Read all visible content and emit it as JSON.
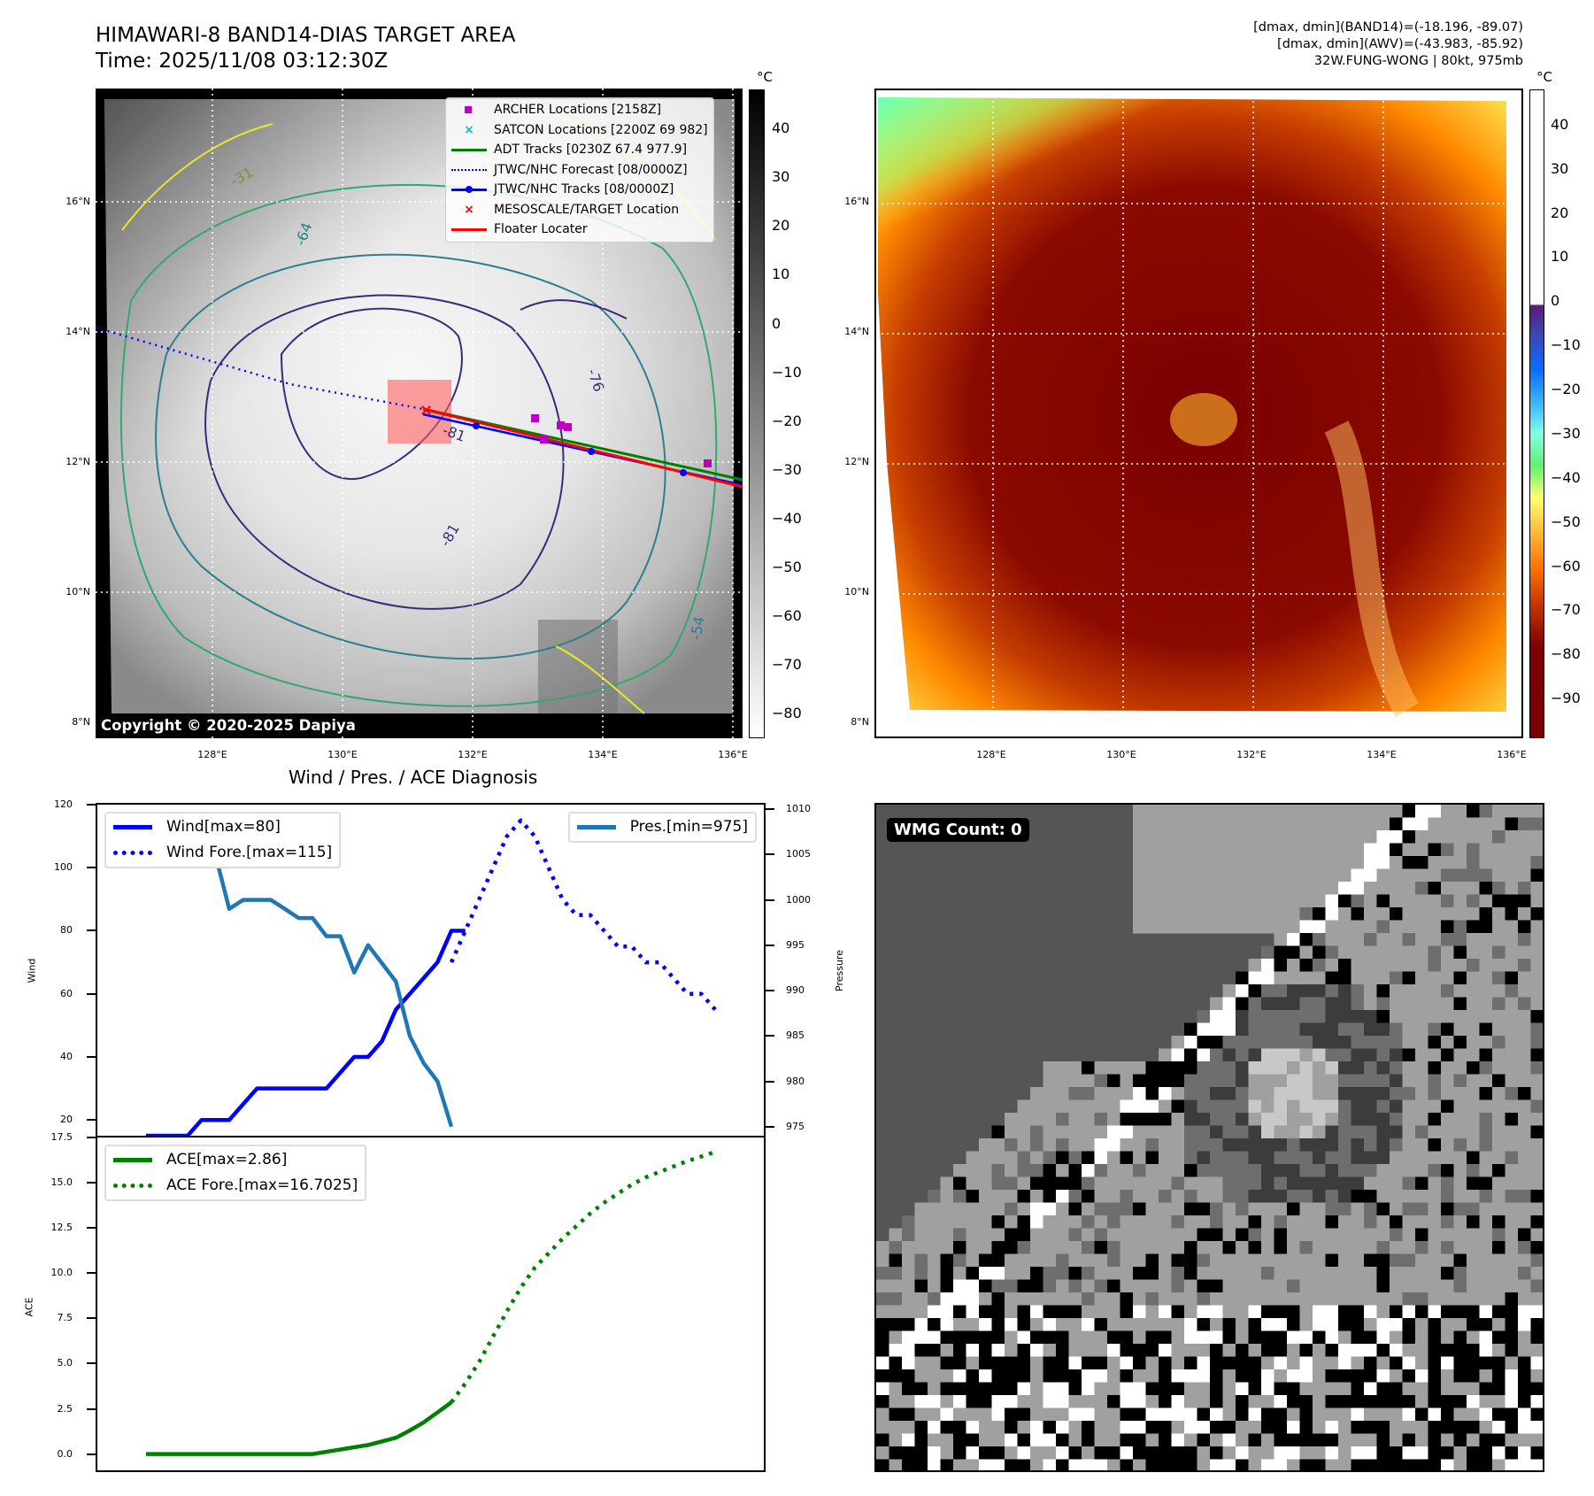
{
  "header": {
    "title_line1": "HIMAWARI-8 BAND14-DIAS TARGET AREA",
    "title_line2": "Time: 2025/11/08 03:12:30Z",
    "stats_line1": "[dmax, dmin](BAND14)=(-18.196, -89.07)",
    "stats_line2": "[dmax, dmin](AWV)=(-43.983, -85.92)",
    "stats_line3": "32W.FUNG-WONG | 80kt, 975mb"
  },
  "map_axes": {
    "lat_ticks": [
      "16°N",
      "14°N",
      "12°N",
      "10°N",
      "8°N"
    ],
    "lon_ticks": [
      "128°E",
      "130°E",
      "132°E",
      "134°E",
      "136°E"
    ]
  },
  "ir_map": {
    "copyright": "Copyright © 2020-2025 Dapiya",
    "legend": [
      {
        "label": "ARCHER Locations [2158Z]",
        "symbol": "square",
        "color": "#c000c0"
      },
      {
        "label": "SATCON Locations [2200Z 69 982]",
        "symbol": "x",
        "color": "#00bfbf"
      },
      {
        "label": "ADT Tracks [0230Z 67.4 977.9]",
        "symbol": "line",
        "color": "#008000"
      },
      {
        "label": "JTWC/NHC Forecast [08/0000Z]",
        "symbol": "dotted",
        "color": "#0000ff"
      },
      {
        "label": "JTWC/NHC Tracks [08/0000Z]",
        "symbol": "line-dot",
        "color": "#0000ff"
      },
      {
        "label": "MESOSCALE/TARGET Location",
        "symbol": "x",
        "color": "#ff0000"
      },
      {
        "label": "Floater Locater",
        "symbol": "line",
        "color": "#ff0000"
      }
    ],
    "contour_labels": [
      "-81",
      "-76",
      "-64",
      "-54",
      "-31",
      "-81"
    ],
    "colorbar": {
      "unit": "°C",
      "ticks": [
        "40",
        "30",
        "20",
        "10",
        "0",
        "−10",
        "−20",
        "−30",
        "−40",
        "−50",
        "−60",
        "−70",
        "−80"
      ],
      "range": [
        -85,
        48
      ]
    }
  },
  "awv_map": {
    "colorbar": {
      "unit": "°C",
      "ticks": [
        "40",
        "30",
        "20",
        "10",
        "0",
        "−10",
        "−20",
        "−30",
        "−40",
        "−50",
        "−60",
        "−70",
        "−80",
        "−90"
      ],
      "range": [
        -99,
        48
      ]
    }
  },
  "wmg_panel": {
    "badge": "WMG Count: 0"
  },
  "chart_data": [
    {
      "type": "line",
      "title": "Wind / Pres. / ACE Diagnosis",
      "ylabel": "Wind",
      "y2label": "Pressure",
      "ylim": [
        15,
        120
      ],
      "y2lim": [
        974,
        1010.5
      ],
      "yticks": [
        "120",
        "100",
        "80",
        "60",
        "40",
        "20"
      ],
      "y2ticks": [
        "1010",
        "1005",
        "1000",
        "995",
        "990",
        "985",
        "980",
        "975"
      ],
      "x": [
        0,
        1,
        2,
        3,
        4,
        5,
        6,
        7,
        8,
        9,
        10,
        11,
        12,
        13,
        14,
        15,
        16,
        17,
        18,
        19,
        20,
        21,
        22,
        23,
        24,
        25,
        26,
        27,
        28,
        29,
        30,
        31,
        32,
        33,
        34,
        35,
        36,
        37,
        38,
        39,
        40,
        41
      ],
      "series": [
        {
          "name": "Wind[max=80]",
          "axis": "left",
          "style": "solid",
          "color": "#0000ff",
          "x": [
            0,
            1,
            2,
            3,
            4,
            5,
            6,
            7,
            8,
            9,
            10,
            11,
            12,
            13,
            14,
            15,
            16,
            17,
            18,
            19,
            20,
            21,
            22,
            23
          ],
          "values": [
            15,
            15,
            15,
            15,
            20,
            20,
            20,
            25,
            30,
            30,
            30,
            30,
            30,
            30,
            35,
            40,
            40,
            45,
            55,
            60,
            65,
            70,
            80,
            80
          ]
        },
        {
          "name": "Wind Fore.[max=115]",
          "axis": "left",
          "style": "dotted",
          "color": "#0000ff",
          "x": [
            22,
            23,
            24,
            25,
            26,
            27,
            28,
            29,
            30,
            31,
            32,
            33,
            34,
            35,
            36,
            37,
            38,
            39,
            40,
            41
          ],
          "values": [
            70,
            80,
            90,
            100,
            110,
            115,
            110,
            100,
            90,
            85,
            85,
            80,
            75,
            75,
            70,
            70,
            65,
            60,
            60,
            55
          ]
        },
        {
          "name": "Pres.[min=975]",
          "axis": "right",
          "style": "solid",
          "color": "#1f77b4",
          "x": [
            0,
            1,
            2,
            3,
            4,
            5,
            6,
            7,
            8,
            9,
            10,
            11,
            12,
            13,
            14,
            15,
            16,
            17,
            18,
            19,
            20,
            21,
            22
          ],
          "values": [
            1009,
            1007,
            1007,
            1007,
            1006,
            1005,
            999,
            1000,
            1000,
            1000,
            999,
            998,
            998,
            996,
            996,
            992,
            995,
            993,
            991,
            985,
            982,
            980,
            975
          ]
        }
      ]
    },
    {
      "type": "line",
      "ylabel": "ACE",
      "ylim": [
        -0.9,
        17.5
      ],
      "yticks": [
        "17.5",
        "15.0",
        "12.5",
        "10.0",
        "7.5",
        "5.0",
        "2.5",
        "0.0"
      ],
      "series": [
        {
          "name": "ACE[max=2.86]",
          "style": "solid",
          "color": "#008000",
          "x": [
            0,
            2,
            4,
            6,
            8,
            10,
            12,
            14,
            16,
            18,
            19,
            20,
            21,
            22
          ],
          "values": [
            0,
            0,
            0,
            0,
            0,
            0,
            0,
            0.25,
            0.5,
            0.9,
            1.3,
            1.75,
            2.3,
            2.86
          ]
        },
        {
          "name": "ACE Fore.[max=16.7025]",
          "style": "dotted",
          "color": "#008000",
          "x": [
            22,
            23,
            24,
            25,
            26,
            27,
            28,
            29,
            30,
            31,
            32,
            33,
            34,
            35,
            36,
            37,
            38,
            39,
            40,
            41
          ],
          "values": [
            2.86,
            3.9,
            5.1,
            6.5,
            7.9,
            9.2,
            10.3,
            11.1,
            11.9,
            12.6,
            13.3,
            13.9,
            14.4,
            14.9,
            15.3,
            15.6,
            15.9,
            16.2,
            16.45,
            16.7025
          ]
        }
      ]
    }
  ]
}
